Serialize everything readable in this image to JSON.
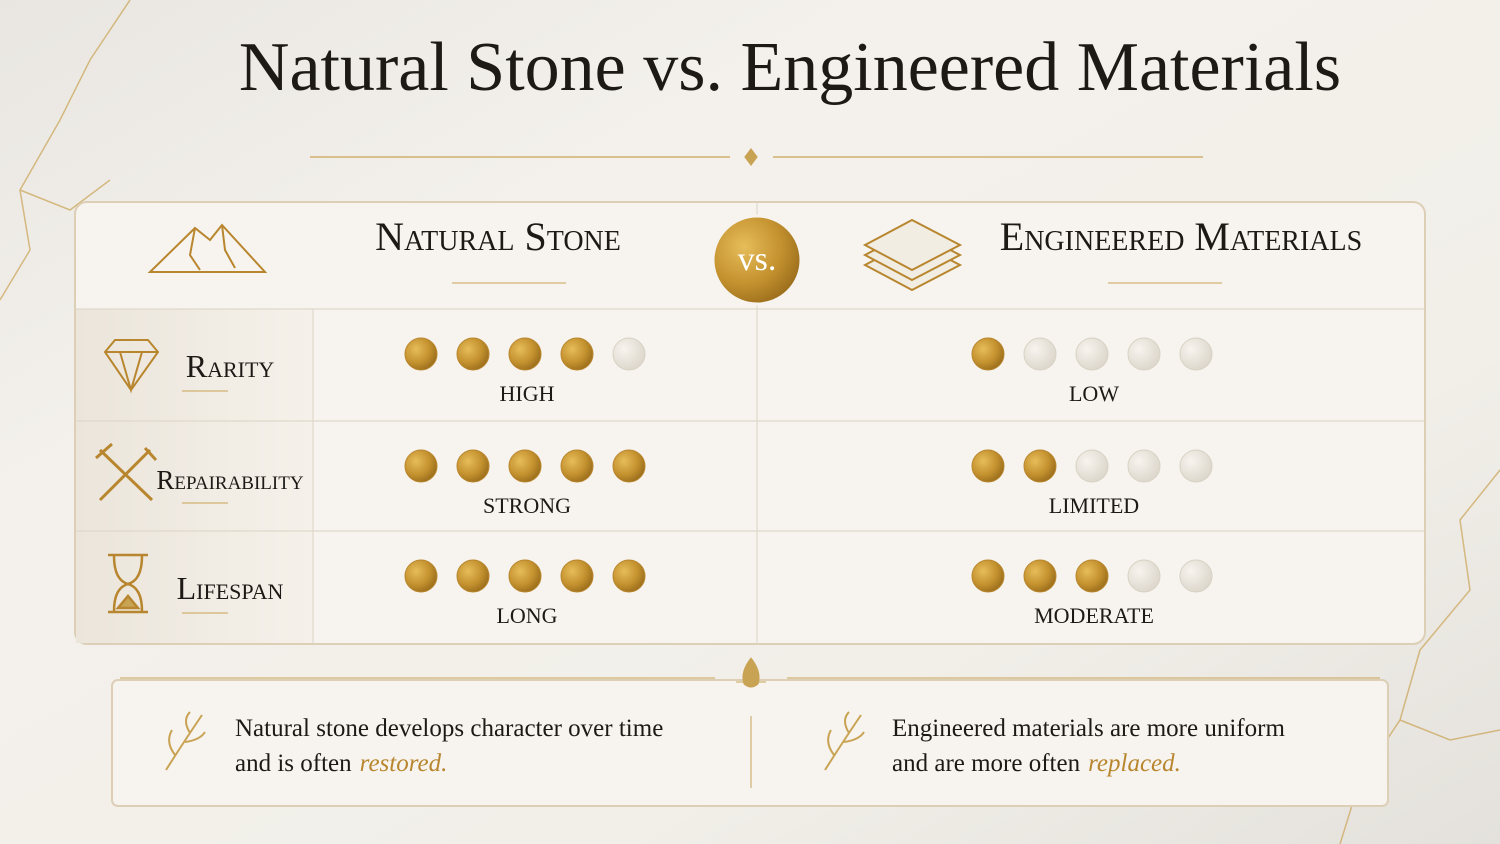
{
  "title": "Natural Stone vs. Engineered Materials",
  "comparison": {
    "columns": [
      "Natural Stone",
      "Engineered Materials"
    ],
    "vs": "vs.",
    "scale_max": 5,
    "rows": [
      {
        "label": "Rarity",
        "cells": [
          {
            "rating": 4,
            "label": "HIGH"
          },
          {
            "rating": 1,
            "label": "LOW"
          }
        ]
      },
      {
        "label": "Repairability",
        "cells": [
          {
            "rating": 5,
            "label": "STRONG"
          },
          {
            "rating": 2,
            "label": "LIMITED"
          }
        ]
      },
      {
        "label": "Lifespan",
        "cells": [
          {
            "rating": 5,
            "label": "LONG"
          },
          {
            "rating": 3,
            "label": "MODERATE"
          }
        ]
      }
    ]
  },
  "notes": [
    {
      "lines": [
        "Natural stone develops character over time",
        "and is often"
      ],
      "emphasis": "restored."
    },
    {
      "lines": [
        "Engineered materials are more uniform",
        "and are more often"
      ],
      "emphasis": "replaced."
    }
  ]
}
